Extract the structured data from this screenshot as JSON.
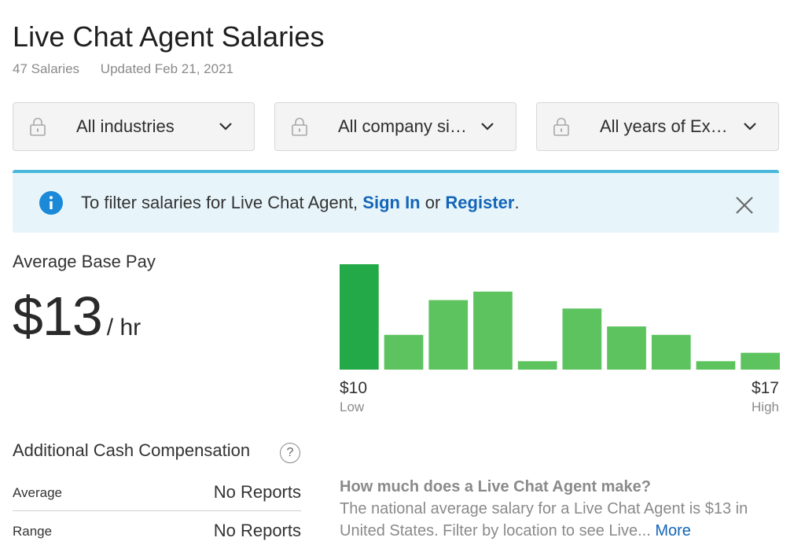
{
  "header": {
    "title": "Live Chat Agent Salaries",
    "salary_count": "47 Salaries",
    "updated": "Updated Feb 21, 2021"
  },
  "filters": {
    "industry": "All industries",
    "company_size": "All company sizes",
    "experience": "All years of Exp..."
  },
  "banner": {
    "text_prefix": "To filter salaries for Live Chat Agent, ",
    "sign_in": "Sign In",
    "or": " or ",
    "register": "Register",
    "suffix": "."
  },
  "pay": {
    "label": "Average Base Pay",
    "amount": "$13",
    "unit": "/ hr"
  },
  "distribution": {
    "low_value": "$10",
    "low_label": "Low",
    "high_value": "$17",
    "high_label": "High",
    "relative_heights": [
      1.0,
      0.33,
      0.66,
      0.74,
      0.08,
      0.58,
      0.41,
      0.33,
      0.08,
      0.16
    ]
  },
  "additional": {
    "title": "Additional Cash Compensation",
    "help": "?",
    "average_label": "Average",
    "average_value": "No Reports",
    "range_label": "Range",
    "range_value": "No Reports"
  },
  "faq": {
    "question": "How much does a Live Chat Agent make?",
    "answer": "The national average salary for a Live Chat Agent is $13 in United States. Filter by location to see Live... ",
    "more": "More"
  },
  "colors": {
    "accent_blue": "#1465b8",
    "banner_bg": "#e7f5fb",
    "banner_border": "#49b8da",
    "bar_green": "#5cc35e",
    "bar_green_dark": "#23a948"
  }
}
